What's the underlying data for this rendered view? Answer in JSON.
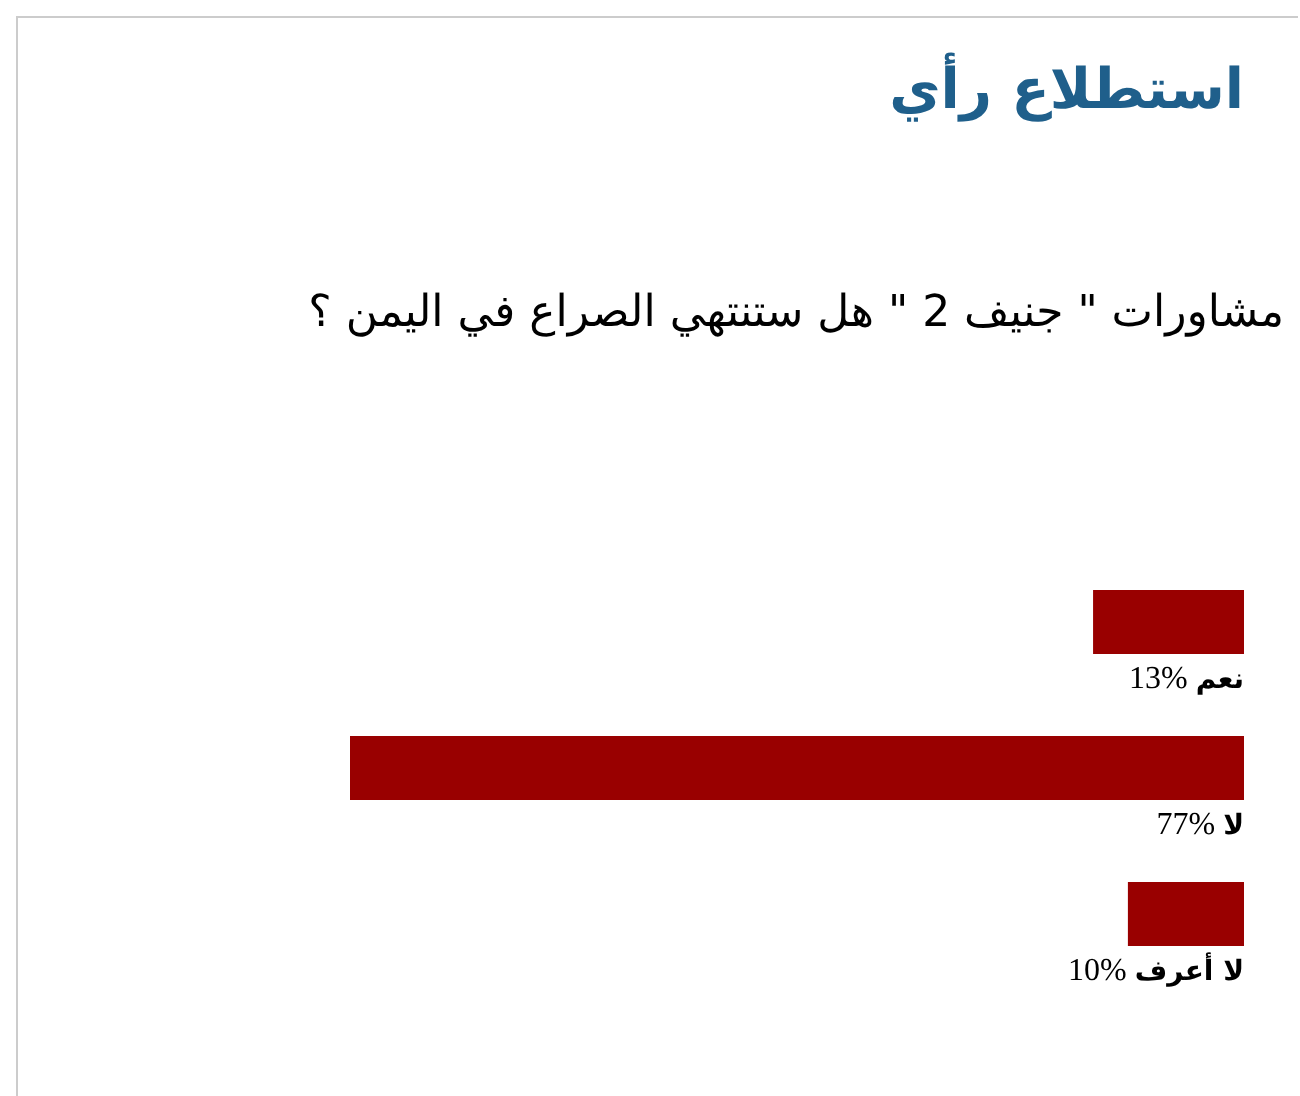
{
  "chart_data": {
    "type": "bar",
    "orientation": "horizontal",
    "title": "استطلاع رأي",
    "subtitle": "مشاورات \" جنيف 2 \" هل ستنتهي الصراع في اليمن ؟",
    "categories": [
      "نعم",
      "لا",
      "لا أعرف"
    ],
    "values": [
      13,
      77,
      10
    ],
    "color": "#990000",
    "value_labels": [
      "13%",
      "77%",
      "10%"
    ]
  }
}
